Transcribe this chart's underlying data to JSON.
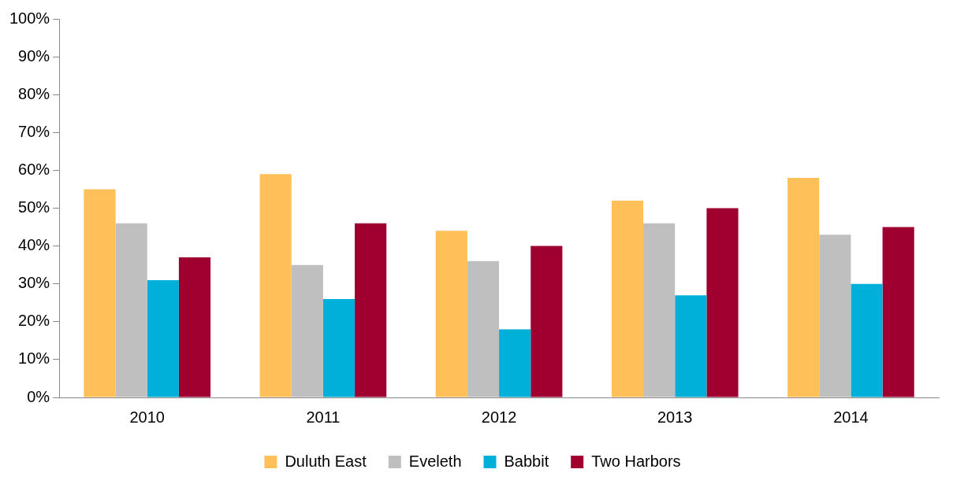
{
  "chart_data": {
    "type": "bar",
    "categories": [
      "2010",
      "2011",
      "2012",
      "2013",
      "2014"
    ],
    "series": [
      {
        "name": "Duluth East",
        "color": "#ffc05a",
        "values": [
          55,
          59,
          44,
          52,
          58
        ]
      },
      {
        "name": "Eveleth",
        "color": "#bfbfbf",
        "values": [
          46,
          35,
          36,
          46,
          43
        ]
      },
      {
        "name": "Babbit",
        "color": "#00b0d8",
        "values": [
          31,
          26,
          18,
          27,
          30
        ]
      },
      {
        "name": "Two Harbors",
        "color": "#a0002f",
        "values": [
          37,
          46,
          40,
          50,
          45
        ]
      }
    ],
    "ylim": [
      0,
      100
    ],
    "yticks": [
      {
        "value": 0,
        "label": "0%"
      },
      {
        "value": 10,
        "label": "10%"
      },
      {
        "value": 20,
        "label": "20%"
      },
      {
        "value": 30,
        "label": "30%"
      },
      {
        "value": 40,
        "label": "40%"
      },
      {
        "value": 50,
        "label": "50%"
      },
      {
        "value": 60,
        "label": "60%"
      },
      {
        "value": 70,
        "label": "70%"
      },
      {
        "value": 80,
        "label": "80%"
      },
      {
        "value": 90,
        "label": "90%"
      },
      {
        "value": 100,
        "label": "100%"
      }
    ],
    "grid": false,
    "legend": "bottom"
  }
}
